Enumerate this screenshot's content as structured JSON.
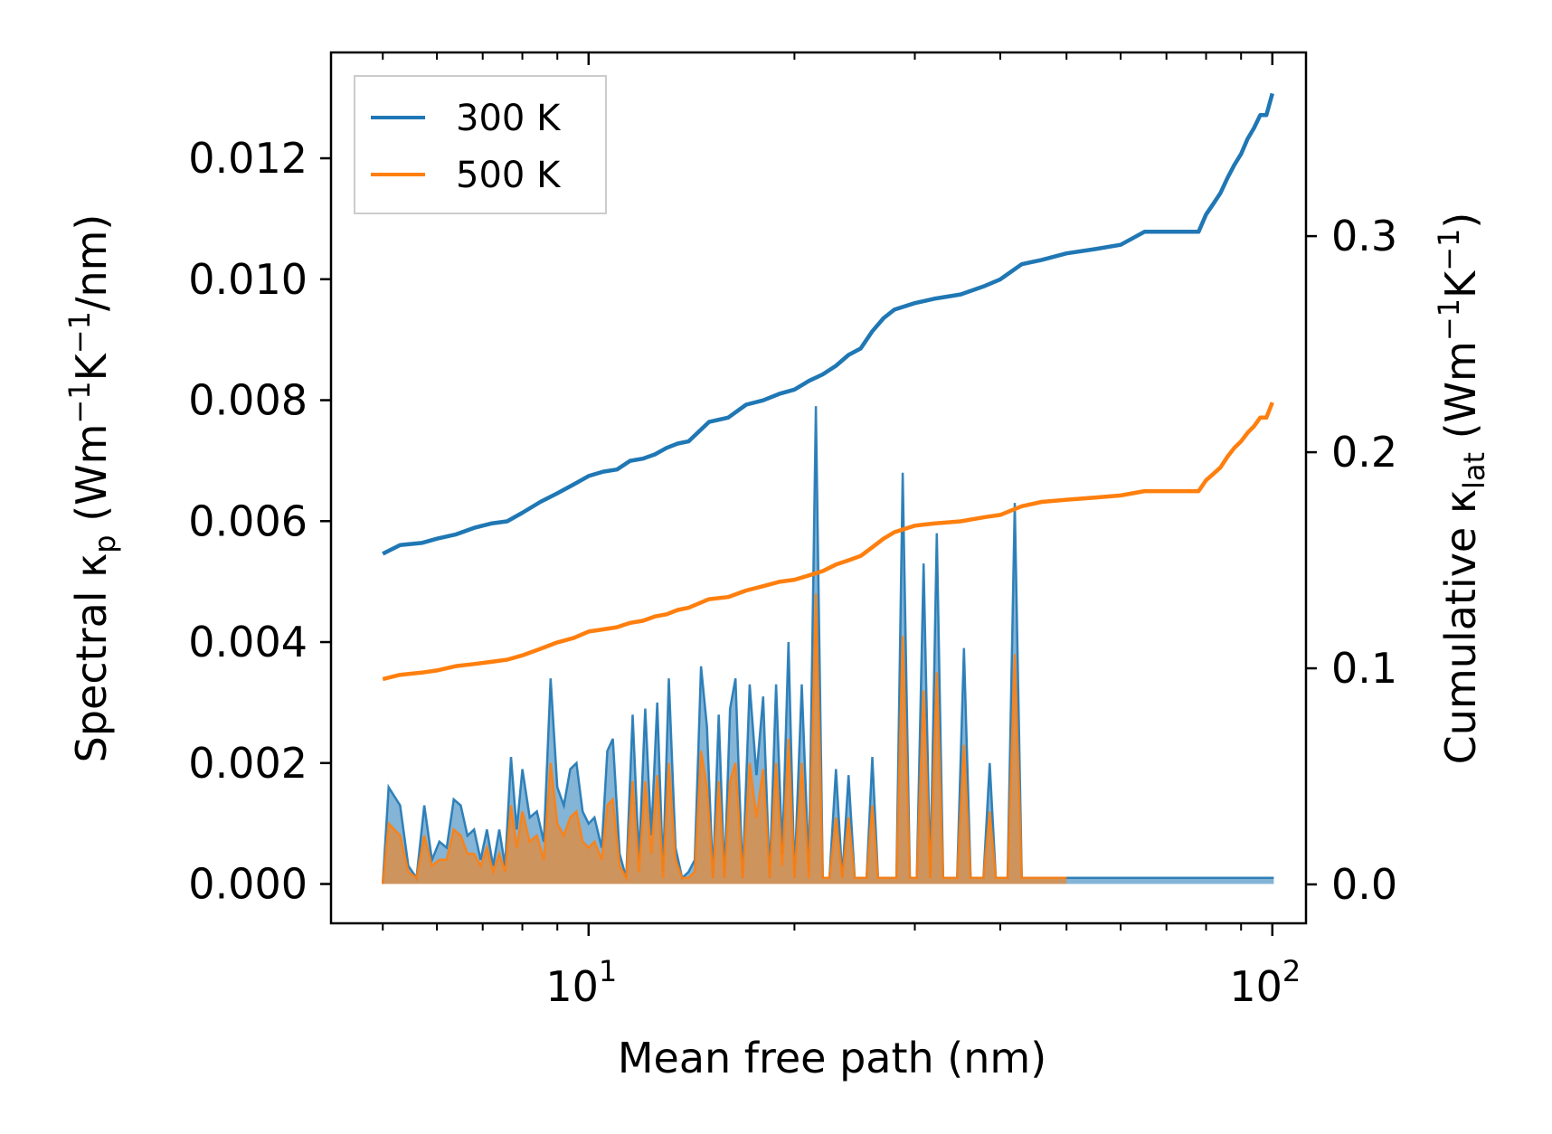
{
  "chart_data": {
    "type": "line",
    "xlabel": "Mean free path (nm)",
    "xscale": "log",
    "xlim": [
      4.2,
      112
    ],
    "y_left": {
      "label_main": "Spectral κ",
      "label_sub": "p",
      "label_units_open": " (Wm",
      "label_sup1": "−1",
      "label_mid": "K",
      "label_sup2": "−1",
      "label_close": "/nm)",
      "ylim": [
        -0.00065,
        0.01375
      ],
      "ticks": [
        0.0,
        0.002,
        0.004,
        0.006,
        0.008,
        0.01,
        0.012
      ],
      "tick_labels": [
        "0.000",
        "0.002",
        "0.004",
        "0.006",
        "0.008",
        "0.010",
        "0.012"
      ]
    },
    "y_right": {
      "label_main": "Cumulative κ",
      "label_sub": "lat",
      "label_units_open": " (Wm",
      "label_sup1": "−1",
      "label_mid": "K",
      "label_sup2": "−1",
      "label_close": ")",
      "ylim": [
        -0.018,
        0.385
      ],
      "ticks": [
        0.0,
        0.1,
        0.2,
        0.3
      ],
      "tick_labels": [
        "0.0",
        "0.1",
        "0.2",
        "0.3"
      ]
    },
    "x_tick_labels": [
      {
        "base": "10",
        "exp": "1",
        "value": 10
      },
      {
        "base": "10",
        "exp": "2",
        "value": 100
      }
    ],
    "legend": [
      {
        "label": "300 K",
        "color": "#1f77b4"
      },
      {
        "label": "500 K",
        "color": "#ff7f0e"
      }
    ],
    "legend_position": "top-left",
    "cumulative_series": [
      {
        "name": "300 K",
        "color": "#1f77b4",
        "x": [
          5.0,
          5.3,
          5.7,
          6.0,
          6.4,
          6.8,
          7.2,
          7.6,
          8.0,
          8.5,
          9.0,
          9.5,
          10.0,
          10.5,
          11.0,
          11.5,
          12.0,
          12.5,
          13.0,
          13.5,
          14.0,
          15.0,
          16.0,
          17.0,
          18.0,
          19.0,
          20.0,
          21.0,
          22.0,
          23.0,
          24.0,
          25.0,
          26.0,
          27.0,
          28.0,
          30.0,
          32.0,
          35.0,
          38.0,
          40.0,
          43.0,
          46.0,
          50.0,
          55.0,
          60.0,
          65.0,
          70.0,
          75.0,
          78.0,
          80.0,
          82.0,
          84.0,
          86.0,
          88.0,
          90.0,
          92.0,
          94.0,
          96.0,
          98.0,
          100.0
        ],
        "y": [
          0.153,
          0.157,
          0.158,
          0.16,
          0.162,
          0.165,
          0.167,
          0.168,
          0.172,
          0.177,
          0.181,
          0.185,
          0.189,
          0.191,
          0.192,
          0.196,
          0.197,
          0.199,
          0.202,
          0.204,
          0.205,
          0.214,
          0.216,
          0.222,
          0.224,
          0.227,
          0.229,
          0.233,
          0.236,
          0.24,
          0.245,
          0.248,
          0.256,
          0.262,
          0.266,
          0.269,
          0.271,
          0.273,
          0.277,
          0.28,
          0.287,
          0.289,
          0.292,
          0.294,
          0.296,
          0.302,
          0.302,
          0.302,
          0.302,
          0.31,
          0.315,
          0.32,
          0.327,
          0.333,
          0.338,
          0.345,
          0.35,
          0.356,
          0.356,
          0.366
        ]
      },
      {
        "name": "500 K",
        "color": "#ff7f0e",
        "x": [
          5.0,
          5.3,
          5.7,
          6.0,
          6.4,
          6.8,
          7.2,
          7.6,
          8.0,
          8.5,
          9.0,
          9.5,
          10.0,
          10.5,
          11.0,
          11.5,
          12.0,
          12.5,
          13.0,
          13.5,
          14.0,
          15.0,
          16.0,
          17.0,
          18.0,
          19.0,
          20.0,
          21.0,
          22.0,
          23.0,
          24.0,
          25.0,
          26.0,
          27.0,
          28.0,
          30.0,
          32.0,
          35.0,
          38.0,
          40.0,
          43.0,
          46.0,
          50.0,
          55.0,
          60.0,
          65.0,
          70.0,
          75.0,
          78.0,
          80.0,
          82.0,
          84.0,
          86.0,
          88.0,
          90.0,
          92.0,
          94.0,
          96.0,
          98.0,
          100.0
        ],
        "y": [
          0.095,
          0.097,
          0.098,
          0.099,
          0.101,
          0.102,
          0.103,
          0.104,
          0.106,
          0.109,
          0.112,
          0.114,
          0.117,
          0.118,
          0.119,
          0.121,
          0.122,
          0.124,
          0.125,
          0.127,
          0.128,
          0.132,
          0.133,
          0.136,
          0.138,
          0.14,
          0.141,
          0.143,
          0.145,
          0.148,
          0.15,
          0.152,
          0.156,
          0.16,
          0.163,
          0.166,
          0.167,
          0.168,
          0.17,
          0.171,
          0.175,
          0.177,
          0.178,
          0.179,
          0.18,
          0.182,
          0.182,
          0.182,
          0.182,
          0.187,
          0.19,
          0.193,
          0.198,
          0.202,
          0.205,
          0.209,
          0.212,
          0.216,
          0.216,
          0.223
        ]
      }
    ],
    "spectral_series": [
      {
        "name": "300 K",
        "color": "#1f77b4",
        "x": [
          5.0,
          5.1,
          5.3,
          5.45,
          5.6,
          5.75,
          5.9,
          6.05,
          6.2,
          6.35,
          6.5,
          6.65,
          6.8,
          6.95,
          7.1,
          7.25,
          7.4,
          7.55,
          7.7,
          7.85,
          8.0,
          8.2,
          8.4,
          8.6,
          8.8,
          9.0,
          9.2,
          9.4,
          9.6,
          9.8,
          10.0,
          10.2,
          10.45,
          10.65,
          10.85,
          11.1,
          11.35,
          11.6,
          11.85,
          12.1,
          12.35,
          12.6,
          12.85,
          13.1,
          13.4,
          13.7,
          14.0,
          14.3,
          14.6,
          14.9,
          15.2,
          15.5,
          15.8,
          16.1,
          16.4,
          16.8,
          17.2,
          17.6,
          18.0,
          18.4,
          18.8,
          19.2,
          19.6,
          20.0,
          20.5,
          21.0,
          21.5,
          22.0,
          22.5,
          23.0,
          23.5,
          24.0,
          24.5,
          25.0,
          25.5,
          26.0,
          26.5,
          27.0,
          27.6,
          28.2,
          28.8,
          29.5,
          30.2,
          30.9,
          31.6,
          32.3,
          33.0,
          33.8,
          34.6,
          35.4,
          36.2,
          37.0,
          37.8,
          38.6,
          39.4,
          40.2,
          41.0,
          42.0,
          43.0,
          44.0,
          45.0,
          46.0,
          47.0,
          48.0,
          49.0,
          50.0,
          51.5,
          53.0,
          54.5,
          56.0,
          57.5,
          59.0,
          60.5,
          62.0,
          63.5,
          65.0,
          66.5,
          68.0,
          70.0,
          72.0,
          74.0,
          76.0,
          77.5,
          78.5,
          79.5,
          80.5,
          81.5,
          82.5,
          83.5,
          84.5,
          85.5,
          86.5,
          87.5,
          88.5,
          89.5,
          90.5,
          91.5,
          92.5,
          93.5,
          94.5,
          95.5,
          96.5,
          97.5,
          98.5,
          99.3,
          100.0,
          100.5
        ],
        "y": [
          0.0,
          0.0016,
          0.0013,
          0.0003,
          0.0001,
          0.0013,
          0.0004,
          0.0007,
          0.0006,
          0.0014,
          0.0013,
          0.0008,
          0.0009,
          0.0004,
          0.0009,
          0.0003,
          0.0009,
          0.0003,
          0.0021,
          0.0009,
          0.0019,
          0.0011,
          0.0012,
          0.0007,
          0.0034,
          0.0016,
          0.0013,
          0.0019,
          0.002,
          0.0012,
          0.001,
          0.0011,
          0.0006,
          0.0022,
          0.0024,
          0.0005,
          0.0001,
          0.0028,
          0.0004,
          0.0029,
          0.0008,
          0.003,
          0.0002,
          0.0034,
          0.0006,
          0.0001,
          0.0002,
          0.0004,
          0.0036,
          0.0026,
          0.0001,
          0.0028,
          0.0001,
          0.0029,
          0.0034,
          0.0001,
          0.0033,
          0.0018,
          0.0031,
          0.0001,
          0.0033,
          0.0005,
          0.004,
          0.0001,
          0.0033,
          0.0002,
          0.0079,
          0.0001,
          0.0001,
          0.0019,
          0.0001,
          0.0018,
          0.0001,
          0.0001,
          0.0001,
          0.0021,
          0.0001,
          0.0001,
          0.0001,
          0.0001,
          0.0068,
          0.0001,
          0.0001,
          0.0053,
          0.0001,
          0.0058,
          0.0001,
          0.0001,
          0.0001,
          0.0039,
          0.0001,
          0.0001,
          0.0001,
          0.002,
          0.0001,
          0.0001,
          0.0001,
          0.0063,
          0.0001,
          0.0001,
          0.0001,
          0.0001,
          0.0001,
          0.0001,
          0.0001,
          0.0001,
          0.0001,
          0.0001,
          0.0001,
          0.0001,
          0.0001,
          0.0001,
          0.0001,
          0.0001,
          0.0001,
          0.0001,
          0.0001,
          0.0001,
          0.0001,
          0.0001,
          0.0001,
          0.0001,
          0.0001,
          0.0001,
          0.0001,
          0.0001,
          0.0001,
          0.0001,
          0.0001,
          0.0001,
          0.0001,
          0.0001,
          0.0001,
          0.0001,
          0.0001,
          0.0001,
          0.0001,
          0.0001,
          0.0001,
          0.0001,
          0.0001,
          0.0001,
          0.0001,
          0.0001,
          0.0001,
          0.0001,
          0.0001
        ]
      },
      {
        "name": "500 K",
        "color": "#ff7f0e",
        "x": [
          5.0,
          5.1,
          5.3,
          5.45,
          5.6,
          5.75,
          5.9,
          6.05,
          6.2,
          6.35,
          6.5,
          6.65,
          6.8,
          6.95,
          7.1,
          7.25,
          7.4,
          7.55,
          7.7,
          7.85,
          8.0,
          8.2,
          8.4,
          8.6,
          8.8,
          9.0,
          9.2,
          9.4,
          9.6,
          9.8,
          10.0,
          10.2,
          10.45,
          10.65,
          10.85,
          11.1,
          11.35,
          11.6,
          11.85,
          12.1,
          12.35,
          12.6,
          12.85,
          13.1,
          13.4,
          13.7,
          14.0,
          14.3,
          14.6,
          14.9,
          15.2,
          15.5,
          15.8,
          16.1,
          16.4,
          16.8,
          17.2,
          17.6,
          18.0,
          18.4,
          18.8,
          19.2,
          19.6,
          20.0,
          20.5,
          21.0,
          21.5,
          22.0,
          22.5,
          23.0,
          23.5,
          24.0,
          24.5,
          25.0,
          25.5,
          26.0,
          26.5,
          27.0,
          27.6,
          28.2,
          28.8,
          29.5,
          30.2,
          30.9,
          31.6,
          32.3,
          33.0,
          33.8,
          34.6,
          35.4,
          36.2,
          37.0,
          37.8,
          38.6,
          39.4,
          40.2,
          41.0,
          42.0,
          43.0,
          44.0,
          45.0,
          46.0,
          47.0,
          48.0,
          49.0,
          50.0
        ],
        "y": [
          0.0,
          0.001,
          0.0008,
          0.0002,
          0.0001,
          0.0008,
          0.0003,
          0.0004,
          0.0004,
          0.0009,
          0.0008,
          0.0005,
          0.0005,
          0.0003,
          0.0006,
          0.0002,
          0.0005,
          0.0002,
          0.0013,
          0.0006,
          0.0012,
          0.0007,
          0.0008,
          0.0004,
          0.002,
          0.001,
          0.0008,
          0.0011,
          0.0012,
          0.0007,
          0.0006,
          0.0007,
          0.0004,
          0.0013,
          0.0014,
          0.0003,
          0.0001,
          0.0017,
          0.0002,
          0.0017,
          0.0005,
          0.0018,
          0.0001,
          0.002,
          0.0004,
          0.0001,
          0.0001,
          0.0002,
          0.0022,
          0.0016,
          0.0001,
          0.0017,
          0.0001,
          0.0017,
          0.002,
          0.0001,
          0.002,
          0.0011,
          0.0019,
          0.0001,
          0.002,
          0.0003,
          0.0024,
          0.0001,
          0.002,
          0.0001,
          0.0048,
          0.0001,
          0.0001,
          0.0011,
          0.0001,
          0.0011,
          0.0001,
          0.0001,
          0.0001,
          0.0013,
          0.0001,
          0.0001,
          0.0001,
          0.0001,
          0.0041,
          0.0001,
          0.0001,
          0.0032,
          0.0001,
          0.0035,
          0.0001,
          0.0001,
          0.0001,
          0.0023,
          0.0001,
          0.0001,
          0.0001,
          0.0012,
          0.0001,
          0.0001,
          0.0001,
          0.0038,
          0.0001,
          0.0001,
          0.0001,
          0.0001,
          0.0001,
          0.0001,
          0.0001,
          0.0001
        ]
      }
    ]
  }
}
